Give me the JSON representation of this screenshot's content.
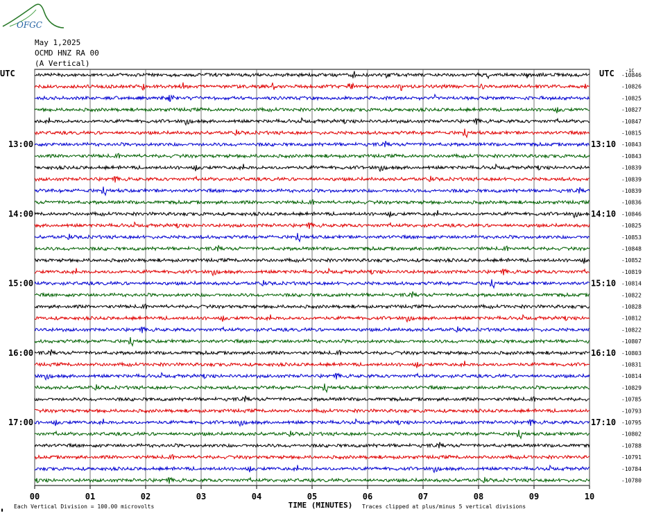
{
  "header": {
    "date": "May 1,2025",
    "station": "OCMD HNZ RA 00",
    "component": "(A Vertical)",
    "logo_text": "OFGC"
  },
  "chart_data": {
    "type": "line",
    "left_timezone": "UTC",
    "right_timezone": "UTC",
    "xlabel": "TIME (MINUTES)",
    "x_ticks": [
      "00",
      "01",
      "02",
      "03",
      "04",
      "05",
      "06",
      "07",
      "08",
      "09",
      "10"
    ],
    "xlim": [
      0,
      10
    ],
    "left_hour_labels": [
      {
        "row": 6,
        "text": "13:00"
      },
      {
        "row": 12,
        "text": "14:00"
      },
      {
        "row": 18,
        "text": "15:00"
      },
      {
        "row": 24,
        "text": "16:00"
      },
      {
        "row": 30,
        "text": "17:00"
      }
    ],
    "right_hour_labels": [
      {
        "row": 6,
        "text": "13:10"
      },
      {
        "row": 12,
        "text": "14:10"
      },
      {
        "row": 18,
        "text": "15:10"
      },
      {
        "row": 24,
        "text": "16:10"
      },
      {
        "row": 30,
        "text": "17:10"
      }
    ],
    "top_right_label": "-1C",
    "trace_offsets": [
      "-10846",
      "-10826",
      "-10825",
      "-10827",
      "-10847",
      "-10815",
      "-10843",
      "-10843",
      "-10839",
      "-10839",
      "-10839",
      "-10836",
      "-10846",
      "-10825",
      "-10853",
      "-10848",
      "-10852",
      "-10819",
      "-10814",
      "-10822",
      "-10828",
      "-10812",
      "-10822",
      "-10807",
      "-10803",
      "-10831",
      "-10814",
      "-10829",
      "-10785",
      "-10793",
      "-10795",
      "-10802",
      "-10788",
      "-10791",
      "-10784",
      "-10780"
    ],
    "trace_colors": [
      "#000000",
      "#e00000",
      "#0000d0",
      "#006000"
    ],
    "footer_left": "Each Vertical Division =  100.00 microvolts",
    "footer_right": "Traces clipped at plus/minus 5 vertical divisions",
    "footer_mark": "▖"
  }
}
